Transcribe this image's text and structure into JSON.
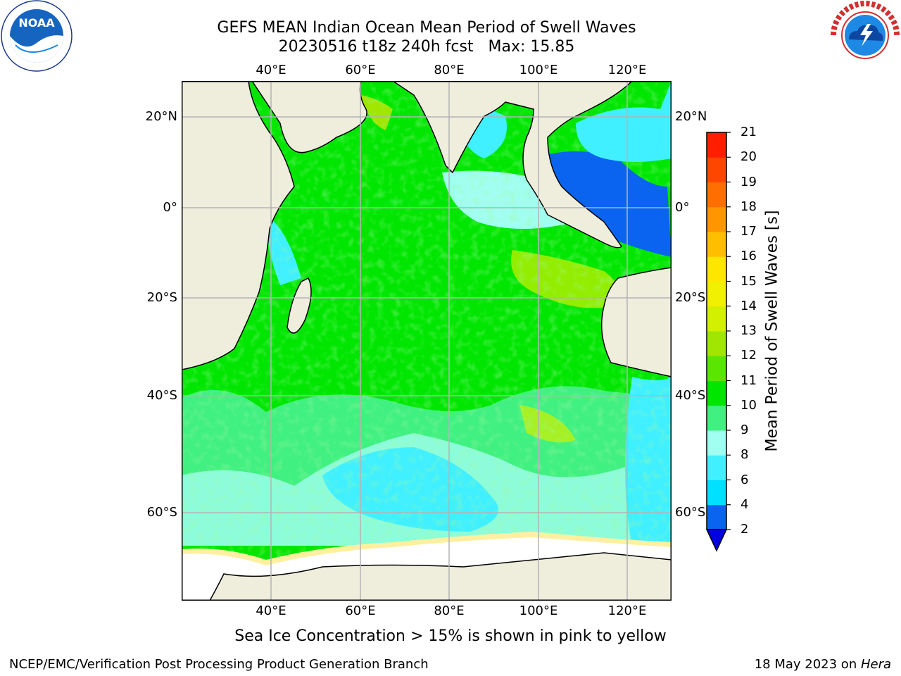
{
  "header": {
    "title": "GEFS MEAN Indian Ocean Mean Period of Swell Waves",
    "subtitle": "20230516 t18z 240h fcst   Max: 15.85"
  },
  "logos": {
    "left": "NOAA",
    "left_ring": "NATIONAL OCEANIC AND ATMOSPHERIC ADMINISTRATION · U.S. DEPARTMENT OF COMMERCE",
    "right_ring": "NATIONAL WEATHER SERVICE"
  },
  "map": {
    "lon_ticks": [
      "40°E",
      "60°E",
      "80°E",
      "100°E",
      "120°E"
    ],
    "lat_ticks": [
      "20°N",
      "0°",
      "20°S",
      "40°S",
      "60°S"
    ],
    "colors": {
      "land": "#efeddc",
      "ice": "#ffffff",
      "grid": "#b4b4b4"
    }
  },
  "colorbar": {
    "label": "Mean Period of Swell Waves [s]",
    "ticks": [
      "2",
      "4",
      "6",
      "8",
      "9",
      "10",
      "11",
      "12",
      "13",
      "14",
      "15",
      "16",
      "17",
      "18",
      "19",
      "20",
      "21"
    ],
    "colors": [
      "#0a64f0",
      "#00e0ff",
      "#40f0ff",
      "#a0fff0",
      "#40f080",
      "#00e600",
      "#5ae600",
      "#a0e600",
      "#d2f000",
      "#f0f000",
      "#ffe600",
      "#ffbe00",
      "#ff9600",
      "#ff6e00",
      "#ff4600",
      "#ff1e00"
    ],
    "under_color": "#0000e0"
  },
  "note": "Sea Ice Concentration > 15% is shown in pink to yellow",
  "footer": {
    "left": "NCEP/EMC/Verification Post Processing Product Generation Branch",
    "right_prefix": "18 May 2023 on ",
    "right_host": "Hera"
  }
}
